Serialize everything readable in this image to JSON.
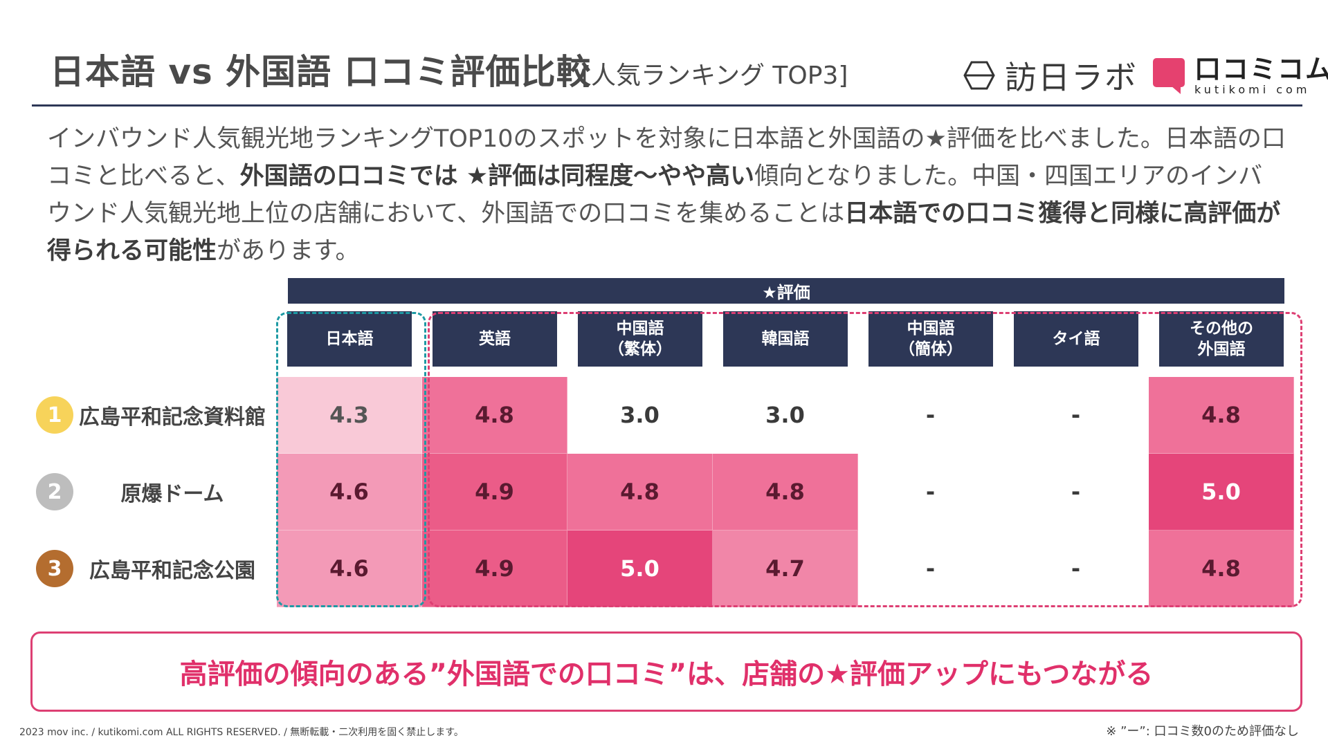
{
  "page": {
    "title": "日本語 vs 外国語 口コミ評価比較",
    "subtitle": "[人気ランキング TOP3]"
  },
  "logos": {
    "honichi_lab": "訪日ラボ",
    "kutikomi_jp": "口コミコム",
    "kutikomi_en": "kutikomi com"
  },
  "intro": {
    "parts": [
      {
        "text": "インバウンド人気観光地ランキングTOP10のスポットを対象に日本語と外国語の★評価を比べました。日本語の口コミと比べると、",
        "bold": false
      },
      {
        "text": "外国語の口コミでは ★評価は同程度〜やや高い",
        "bold": true
      },
      {
        "text": "傾向となりました。中国・四国エリアのインバウンド人気観光地上位の店舗において、外国語での口コミを集めることは",
        "bold": false
      },
      {
        "text": "日本語での口コミ獲得と同様に高評価が得られる可能性",
        "bold": true
      },
      {
        "text": "があります。",
        "bold": false
      }
    ]
  },
  "chart_data": {
    "type": "heatmap",
    "title": "★評価",
    "columns": [
      "日本語",
      "英語",
      "中国語\n（繁体）",
      "韓国語",
      "中国語\n（簡体）",
      "タイ語",
      "その他の\n外国語"
    ],
    "rows": [
      {
        "rank": "1",
        "name": "広島平和記念資料館",
        "values": [
          4.3,
          4.8,
          3.0,
          3.0,
          null,
          null,
          4.8
        ],
        "labels": [
          "4.3",
          "4.8",
          "3.0",
          "3.0",
          "-",
          "-",
          "4.8"
        ]
      },
      {
        "rank": "2",
        "name": "原爆ドーム",
        "values": [
          4.6,
          4.9,
          4.8,
          4.8,
          null,
          null,
          5.0
        ],
        "labels": [
          "4.6",
          "4.9",
          "4.8",
          "4.8",
          "-",
          "-",
          "5.0"
        ]
      },
      {
        "rank": "3",
        "name": "広島平和記念公園",
        "values": [
          4.6,
          4.9,
          5.0,
          4.7,
          null,
          null,
          4.8
        ],
        "labels": [
          "4.6",
          "4.9",
          "5.0",
          "4.7",
          "-",
          "-",
          "4.8"
        ]
      }
    ],
    "groups": [
      {
        "name": "日本語",
        "color": "#1e9aa4"
      },
      {
        "name": "外国語",
        "color": "#dd3f73"
      }
    ]
  },
  "colors": {
    "navy": "#2d3756",
    "gold": "#f7d35a",
    "silver": "#bdbdbd",
    "bronze": "#b46d2f",
    "pink": "#e0306a"
  },
  "conclusion": "高評価の傾向のある”外国語での口コミ”は、店舗の★評価アップにもつながる",
  "footer": {
    "copyright": "2023 mov inc. / kutikomi.com ALL RIGHTS RESERVED. / 無断転載・二次利用を固く禁止します。",
    "note": "※ ”ー”: 口コミ数0のため評価なし"
  }
}
